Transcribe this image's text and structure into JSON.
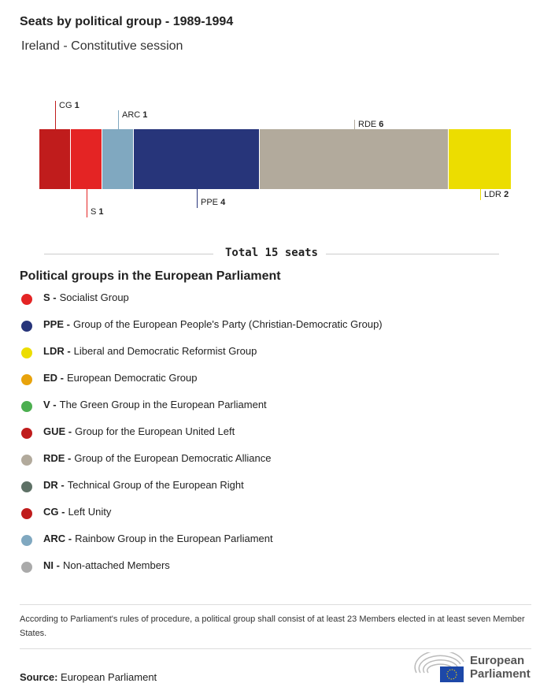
{
  "title": "Seats by political group - 1989-1994",
  "subtitle": "Ireland - Constitutive session",
  "chart_data": {
    "type": "bar",
    "orientation": "stacked-horizontal",
    "title": "Seats by political group - 1989-1994",
    "categories": [
      "CG",
      "S",
      "ARC",
      "PPE",
      "RDE",
      "LDR"
    ],
    "values": [
      1,
      1,
      1,
      4,
      6,
      2
    ],
    "colors": [
      "#c01c1c",
      "#e42424",
      "#80a8c0",
      "#27357a",
      "#b2aa9c",
      "#ecdd00"
    ],
    "label_positions": [
      "above",
      "below",
      "above",
      "below",
      "above",
      "below"
    ],
    "total_label": "Total 15 seats",
    "xlim": [
      0,
      15
    ]
  },
  "legend_title": "Political groups in the European Parliament",
  "legend": [
    {
      "abbr": "S -",
      "name": "Socialist Group",
      "color": "#e42424"
    },
    {
      "abbr": "PPE -",
      "name": "Group of the European People's Party (Christian-Democratic Group)",
      "color": "#27357a"
    },
    {
      "abbr": "LDR -",
      "name": "Liberal and Democratic Reformist Group",
      "color": "#ecdd00"
    },
    {
      "abbr": "ED -",
      "name": "European Democratic Group",
      "color": "#e8a30c"
    },
    {
      "abbr": "V -",
      "name": "The Green Group in the European Parliament",
      "color": "#4caf50"
    },
    {
      "abbr": "GUE -",
      "name": "Group for the European United Left",
      "color": "#c01c1c"
    },
    {
      "abbr": "RDE -",
      "name": "Group of the European Democratic Alliance",
      "color": "#b2aa9c"
    },
    {
      "abbr": "DR -",
      "name": "Technical Group of the European Right",
      "color": "#5e7166"
    },
    {
      "abbr": "CG -",
      "name": "Left Unity",
      "color": "#c01c1c"
    },
    {
      "abbr": "ARC -",
      "name": "Rainbow Group in the European Parliament",
      "color": "#80a8c0"
    },
    {
      "abbr": "NI -",
      "name": "Non-attached Members",
      "color": "#aaaaaa"
    }
  ],
  "note": "According to Parliament's rules of procedure, a political group shall consist of at least 23 Members elected in at least seven Member States.",
  "source_label": "Source:",
  "source": "European Parliament",
  "logo_text": "European Parliament"
}
